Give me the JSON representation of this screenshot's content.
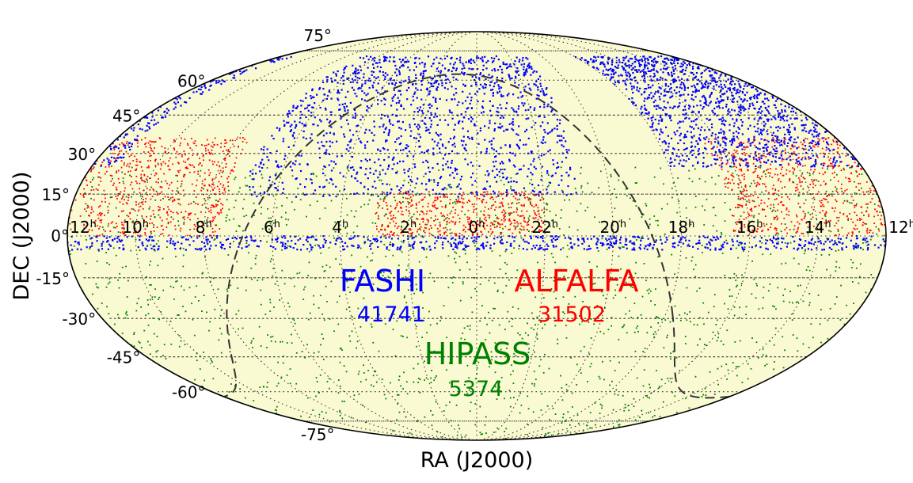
{
  "chart_data": {
    "type": "scatter",
    "projection": "mollweide",
    "title": "",
    "xlabel": "RA (J2000)",
    "ylabel": "DEC (J2000)",
    "ra_ticks": [
      {
        "label": "12",
        "ra_h": 12
      },
      {
        "label": "14",
        "ra_h": 14
      },
      {
        "label": "16",
        "ra_h": 16
      },
      {
        "label": "18",
        "ra_h": 18
      },
      {
        "label": "20",
        "ra_h": 20
      },
      {
        "label": "22",
        "ra_h": 22
      },
      {
        "label": "0",
        "ra_h": 0
      },
      {
        "label": "2",
        "ra_h": 2
      },
      {
        "label": "4",
        "ra_h": 4
      },
      {
        "label": "6",
        "ra_h": 6
      },
      {
        "label": "8",
        "ra_h": 8
      },
      {
        "label": "10",
        "ra_h": 10
      },
      {
        "label": "12",
        "ra_h": 12
      }
    ],
    "ra_tick_suffix": "h",
    "dec_ticks": [
      {
        "label": "75°",
        "dec": 75
      },
      {
        "label": "60°",
        "dec": 60
      },
      {
        "label": "45°",
        "dec": 45
      },
      {
        "label": "30°",
        "dec": 30
      },
      {
        "label": "15°",
        "dec": 15
      },
      {
        "label": "0°",
        "dec": 0
      },
      {
        "label": "-15°",
        "dec": -15
      },
      {
        "label": "-30°",
        "dec": -30
      },
      {
        "label": "-45°",
        "dec": -45
      },
      {
        "label": "-60°",
        "dec": -60
      },
      {
        "label": "-75°",
        "dec": -75
      }
    ],
    "ra_range_h": [
      12,
      12
    ],
    "dec_range": [
      -90,
      90
    ],
    "grid": true,
    "galactic_plane_dashed": true,
    "series": [
      {
        "name": "FASHI",
        "count": "41741",
        "color": "#0000ff",
        "regions": [
          {
            "ra_h": [
              21,
              7
            ],
            "dec": [
              14,
              72
            ]
          },
          {
            "ra_h": [
              11.2,
              18
            ],
            "dec": [
              25,
              72
            ]
          },
          {
            "ra_h": [
              0,
              24
            ],
            "dec": [
              -5,
              0
            ]
          }
        ]
      },
      {
        "name": "ALFALFA",
        "count": "31502",
        "color": "#ff0000",
        "regions": [
          {
            "ra_h": [
              7.5,
              16.5
            ],
            "dec": [
              0,
              36
            ]
          },
          {
            "ra_h": [
              22,
              3
            ],
            "dec": [
              0,
              16
            ]
          }
        ]
      },
      {
        "name": "HIPASS",
        "count": "5374",
        "color": "#008000",
        "regions": [
          {
            "ra_h": [
              0,
              24
            ],
            "dec": [
              -90,
              25
            ]
          }
        ]
      }
    ],
    "colors": {
      "background": "#fafad2",
      "grid": "#333333",
      "galactic_plane": "#333333"
    }
  }
}
